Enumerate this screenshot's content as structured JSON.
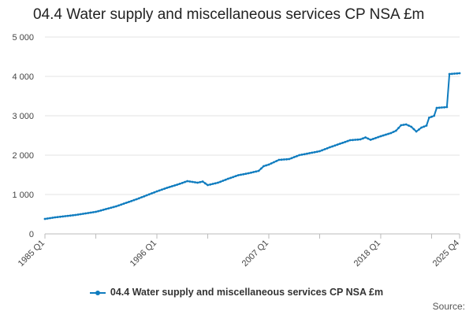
{
  "chart_data": {
    "type": "line",
    "title": "04.4 Water supply and miscellaneous services CP NSA £m",
    "xlabel": "",
    "ylabel": "",
    "ylim": [
      0,
      5000
    ],
    "y_ticks": [
      0,
      1000,
      2000,
      3000,
      4000,
      5000
    ],
    "y_tick_labels": [
      "0",
      "1 000",
      "2 000",
      "3 000",
      "4 000",
      "5 000"
    ],
    "x_range": [
      "1985 Q1",
      "2025 Q4"
    ],
    "x_labeled_ticks": [
      "1985 Q1",
      "1996 Q1",
      "2007 Q1",
      "2018 Q1",
      "2025 Q4"
    ],
    "x_minor_tick_years": [
      1990,
      2001,
      2012,
      2023
    ],
    "grid": "horizontal",
    "legend_position": "bottom",
    "color": "#0f7cbf",
    "series": [
      {
        "name": "04.4 Water supply and miscellaneous services CP NSA £m",
        "anchors": [
          [
            "1985 Q1",
            380
          ],
          [
            "1986 Q1",
            420
          ],
          [
            "1987 Q1",
            450
          ],
          [
            "1988 Q1",
            480
          ],
          [
            "1989 Q1",
            520
          ],
          [
            "1990 Q1",
            560
          ],
          [
            "1991 Q1",
            630
          ],
          [
            "1992 Q1",
            700
          ],
          [
            "1993 Q1",
            790
          ],
          [
            "1994 Q1",
            880
          ],
          [
            "1995 Q1",
            980
          ],
          [
            "1996 Q1",
            1080
          ],
          [
            "1997 Q1",
            1170
          ],
          [
            "1998 Q1",
            1250
          ],
          [
            "1999 Q1",
            1340
          ],
          [
            "2000 Q1",
            1300
          ],
          [
            "2000 Q3",
            1330
          ],
          [
            "2001 Q1",
            1240
          ],
          [
            "2002 Q1",
            1300
          ],
          [
            "2003 Q1",
            1400
          ],
          [
            "2004 Q1",
            1490
          ],
          [
            "2005 Q1",
            1540
          ],
          [
            "2006 Q1",
            1600
          ],
          [
            "2006 Q3",
            1720
          ],
          [
            "2007 Q1",
            1760
          ],
          [
            "2008 Q1",
            1880
          ],
          [
            "2009 Q1",
            1900
          ],
          [
            "2010 Q1",
            2000
          ],
          [
            "2011 Q1",
            2050
          ],
          [
            "2012 Q1",
            2100
          ],
          [
            "2013 Q1",
            2200
          ],
          [
            "2014 Q1",
            2290
          ],
          [
            "2015 Q1",
            2380
          ],
          [
            "2016 Q1",
            2400
          ],
          [
            "2016 Q3",
            2450
          ],
          [
            "2017 Q1",
            2390
          ],
          [
            "2018 Q1",
            2480
          ],
          [
            "2019 Q1",
            2560
          ],
          [
            "2019 Q3",
            2620
          ],
          [
            "2020 Q1",
            2760
          ],
          [
            "2020 Q3",
            2780
          ],
          [
            "2021 Q1",
            2720
          ],
          [
            "2021 Q3",
            2600
          ],
          [
            "2022 Q1",
            2700
          ],
          [
            "2022 Q3",
            2750
          ],
          [
            "2022 Q4",
            2950
          ],
          [
            "2023 Q2",
            3000
          ],
          [
            "2023 Q3",
            3200
          ],
          [
            "2024 Q3",
            3220
          ],
          [
            "2024 Q4",
            4060
          ],
          [
            "2025 Q4",
            4080
          ]
        ]
      }
    ]
  },
  "source_label": "Source:"
}
